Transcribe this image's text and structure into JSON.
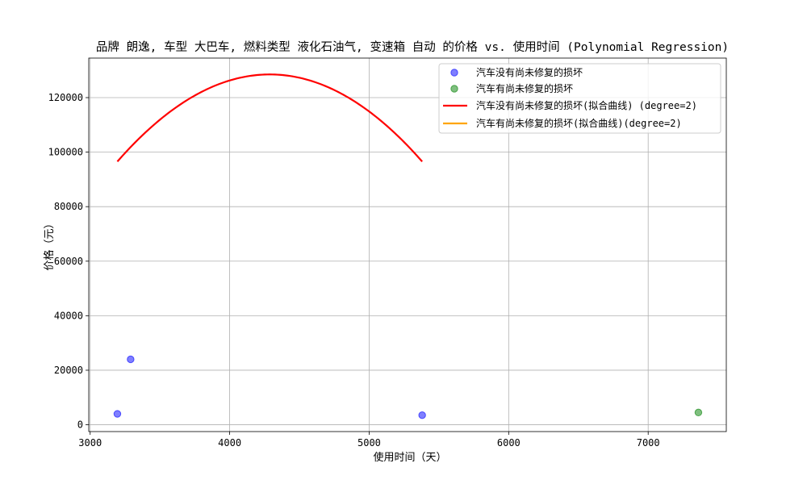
{
  "chart_data": {
    "type": "scatter",
    "title": "品牌 朗逸, 车型 大巴车, 燃料类型 液化石油气, 变速箱 自动 的价格 vs. 使用时间 (Polynomial Regression)",
    "xlabel": "使用时间（天）",
    "ylabel": "价格（元）",
    "xlim": [
      2990,
      7560
    ],
    "ylim": [
      -2500,
      134500
    ],
    "xticks": [
      3000,
      4000,
      5000,
      6000,
      7000
    ],
    "yticks": [
      0,
      20000,
      40000,
      60000,
      80000,
      100000,
      120000
    ],
    "grid": true,
    "legend_position": "top-right",
    "series": [
      {
        "name": "汽车没有尚未修复的损坏",
        "kind": "scatter",
        "color": "#0000ff",
        "points": [
          [
            3195,
            4000
          ],
          [
            3290,
            24000
          ],
          [
            5380,
            3500
          ]
        ]
      },
      {
        "name": "汽车有尚未修复的损坏",
        "kind": "scatter",
        "color": "#008000",
        "points": [
          [
            7360,
            4500
          ]
        ]
      },
      {
        "name": "汽车没有尚未修复的损坏(拟合曲线) (degree=2)",
        "kind": "line",
        "color": "#ff0000",
        "x_range": [
          3195,
          5380
        ],
        "coefficients": {
          "a": -0.026774,
          "h": 4287.5,
          "k": 128500
        }
      },
      {
        "name": "汽车有尚未修复的损坏(拟合曲线)(degree=2)",
        "kind": "line",
        "color": "#ffa500",
        "x_range": null,
        "coefficients": null
      }
    ]
  }
}
